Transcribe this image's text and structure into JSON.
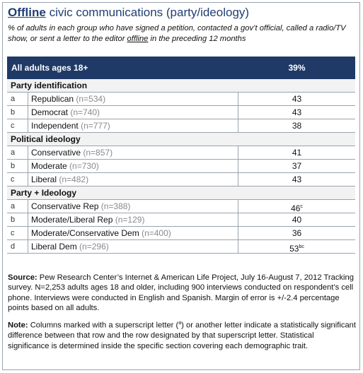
{
  "title": {
    "underlined": "Offline",
    "rest": " civic communications (party/ideology)"
  },
  "subtitle": {
    "before": "% of adults in each group who have signed a petition, contacted a gov’t official, called a radio/TV show, or sent a letter to the editor ",
    "emph": "offline",
    "after": " in the preceding 12 months"
  },
  "header": {
    "label": "All adults ages 18+",
    "value": "39%"
  },
  "sections": [
    {
      "title": "Party identification",
      "rows": [
        {
          "letter": "a",
          "label": "Republican",
          "n": "(n=534)",
          "value": "43",
          "sup": ""
        },
        {
          "letter": "b",
          "label": "Democrat",
          "n": "(n=740)",
          "value": "43",
          "sup": ""
        },
        {
          "letter": "c",
          "label": "Independent",
          "n": "(n=777)",
          "value": "38",
          "sup": ""
        }
      ]
    },
    {
      "title": "Political ideology",
      "rows": [
        {
          "letter": "a",
          "label": "Conservative",
          "n": "(n=857)",
          "value": "41",
          "sup": ""
        },
        {
          "letter": "b",
          "label": "Moderate",
          "n": "(n=730)",
          "value": "37",
          "sup": ""
        },
        {
          "letter": "c",
          "label": "Liberal",
          "n": "(n=482)",
          "value": "43",
          "sup": ""
        }
      ]
    },
    {
      "title": "Party + Ideology",
      "rows": [
        {
          "letter": "a",
          "label": "Conservative Rep",
          "n": "(n=388)",
          "value": "46",
          "sup": "c"
        },
        {
          "letter": "b",
          "label": "Moderate/Liberal Rep",
          "n": "(n=129)",
          "value": "40",
          "sup": ""
        },
        {
          "letter": "c",
          "label": "Moderate/Conservative Dem",
          "n": "(n=400)",
          "value": "36",
          "sup": ""
        },
        {
          "letter": "d",
          "label": "Liberal Dem",
          "n": "(n=296)",
          "value": "53",
          "sup": "bc"
        }
      ]
    }
  ],
  "source": {
    "label": "Source:",
    "text": " Pew Research Center’s Internet & American Life Project, July 16-August 7, 2012 Tracking survey. N=2,253 adults ages 18 and older, including 900 interviews conducted on respondent’s cell phone.  Interviews were conducted in English and Spanish. Margin of error is +/-2.4 percentage points based on all adults."
  },
  "note": {
    "label": "Note:",
    "before": " Columns marked with a superscript letter (",
    "sup": "a",
    "after": ") or another letter indicate a statistically significant difference between that row and the row designated by that superscript letter. Statistical significance is determined inside the specific section covering each demographic trait."
  }
}
